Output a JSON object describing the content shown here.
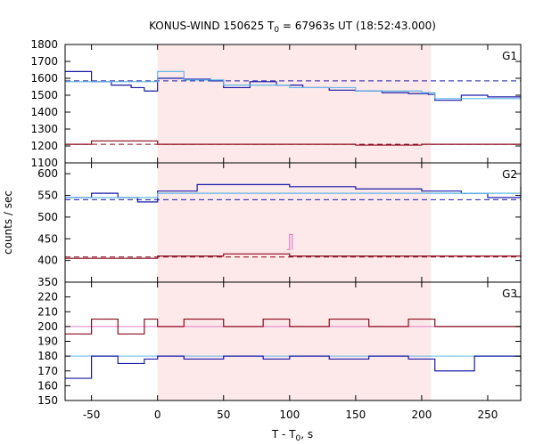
{
  "chart_data": {
    "type": "line",
    "title": {
      "pre": "KONUS-WIND 150625 T",
      "sub": "0",
      "post": " = 67963s UT (18:52:43.000)"
    },
    "xlabel": {
      "pre": "T - T",
      "sub": "0",
      "post": ", s"
    },
    "ylabel": "counts / sec",
    "xlim": [
      -70,
      275
    ],
    "xticks": [
      -50,
      0,
      50,
      100,
      150,
      200,
      250
    ],
    "highlight_interval": [
      0,
      207
    ],
    "colors": {
      "blue": "#1a1aa8",
      "red": "#8b0a1e",
      "light_blue": "#63b8e8",
      "pink_fill": "#fde8ea",
      "pink": "#e080c8"
    },
    "panels": [
      {
        "label": "G1",
        "ylim": [
          1100,
          1800
        ],
        "yticks": [
          1100,
          1200,
          1300,
          1400,
          1500,
          1600,
          1700,
          1800
        ],
        "series": [
          {
            "color": "blue",
            "points": [
              [
                -70,
                1640
              ],
              [
                -50,
                1580
              ],
              [
                -35,
                1560
              ],
              [
                -20,
                1545
              ],
              [
                -10,
                1525
              ],
              [
                0,
                1600
              ],
              [
                20,
                1595
              ],
              [
                40,
                1585
              ],
              [
                50,
                1545
              ],
              [
                70,
                1580
              ],
              [
                90,
                1560
              ],
              [
                110,
                1545
              ],
              [
                130,
                1530
              ],
              [
                150,
                1525
              ],
              [
                170,
                1515
              ],
              [
                190,
                1510
              ],
              [
                205,
                1505
              ],
              [
                210,
                1470
              ],
              [
                230,
                1500
              ],
              [
                250,
                1490
              ],
              [
                275,
                1490
              ]
            ]
          },
          {
            "color": "light_blue",
            "points": [
              [
                -70,
                1580
              ],
              [
                0,
                1640
              ],
              [
                20,
                1590
              ],
              [
                50,
                1560
              ],
              [
                100,
                1545
              ],
              [
                150,
                1525
              ],
              [
                200,
                1515
              ],
              [
                210,
                1480
              ],
              [
                275,
                1495
              ]
            ]
          },
          {
            "color": "red",
            "points": [
              [
                -70,
                1210
              ],
              [
                -50,
                1230
              ],
              [
                0,
                1210
              ],
              [
                50,
                1210
              ],
              [
                100,
                1210
              ],
              [
                150,
                1205
              ],
              [
                200,
                1210
              ],
              [
                250,
                1210
              ],
              [
                275,
                1205
              ]
            ]
          }
        ],
        "backgrounds": [
          {
            "color": "blue",
            "style": "dashed",
            "value": 1585
          },
          {
            "color": "red",
            "style": "dashed",
            "value": 1210
          }
        ]
      },
      {
        "label": "G2",
        "ylim": [
          350,
          625
        ],
        "yticks": [
          350,
          400,
          450,
          500,
          550,
          600
        ],
        "series": [
          {
            "color": "blue",
            "points": [
              [
                -70,
                545
              ],
              [
                -50,
                555
              ],
              [
                -30,
                545
              ],
              [
                -15,
                535
              ],
              [
                0,
                560
              ],
              [
                30,
                575
              ],
              [
                60,
                575
              ],
              [
                100,
                570
              ],
              [
                150,
                565
              ],
              [
                200,
                560
              ],
              [
                230,
                555
              ],
              [
                250,
                545
              ],
              [
                275,
                570
              ]
            ]
          },
          {
            "color": "light_blue",
            "points": [
              [
                -70,
                545
              ],
              [
                0,
                555
              ],
              [
                100,
                555
              ],
              [
                207,
                555
              ],
              [
                275,
                555
              ]
            ]
          },
          {
            "color": "red",
            "points": [
              [
                -70,
                405
              ],
              [
                0,
                410
              ],
              [
                50,
                415
              ],
              [
                100,
                410
              ],
              [
                150,
                410
              ],
              [
                200,
                410
              ],
              [
                250,
                410
              ],
              [
                275,
                420
              ]
            ]
          },
          {
            "color": "pink",
            "points": [
              [
                98,
                425
              ],
              [
                100,
                460
              ],
              [
                102,
                425
              ]
            ]
          }
        ],
        "backgrounds": [
          {
            "color": "blue",
            "style": "dashed",
            "value": 540
          },
          {
            "color": "red",
            "style": "dashed",
            "value": 408
          }
        ]
      },
      {
        "label": "G3",
        "ylim": [
          150,
          230
        ],
        "yticks": [
          150,
          160,
          170,
          180,
          190,
          200,
          210,
          220
        ],
        "series": [
          {
            "color": "red",
            "points": [
              [
                -70,
                195
              ],
              [
                -50,
                205
              ],
              [
                -30,
                195
              ],
              [
                -10,
                205
              ],
              [
                0,
                200
              ],
              [
                20,
                205
              ],
              [
                50,
                200
              ],
              [
                80,
                205
              ],
              [
                100,
                200
              ],
              [
                130,
                205
              ],
              [
                160,
                200
              ],
              [
                190,
                205
              ],
              [
                210,
                200
              ],
              [
                240,
                200
              ],
              [
                275,
                198
              ]
            ]
          },
          {
            "color": "blue",
            "points": [
              [
                -70,
                165
              ],
              [
                -50,
                180
              ],
              [
                -30,
                175
              ],
              [
                -10,
                178
              ],
              [
                0,
                180
              ],
              [
                20,
                178
              ],
              [
                50,
                180
              ],
              [
                80,
                178
              ],
              [
                100,
                180
              ],
              [
                130,
                178
              ],
              [
                160,
                180
              ],
              [
                190,
                178
              ],
              [
                210,
                170
              ],
              [
                240,
                180
              ],
              [
                275,
                178
              ]
            ]
          }
        ],
        "backgrounds": [
          {
            "color": "pink",
            "style": "solid",
            "value": 200
          },
          {
            "color": "light_blue",
            "style": "solid",
            "value": 180
          }
        ]
      }
    ]
  }
}
